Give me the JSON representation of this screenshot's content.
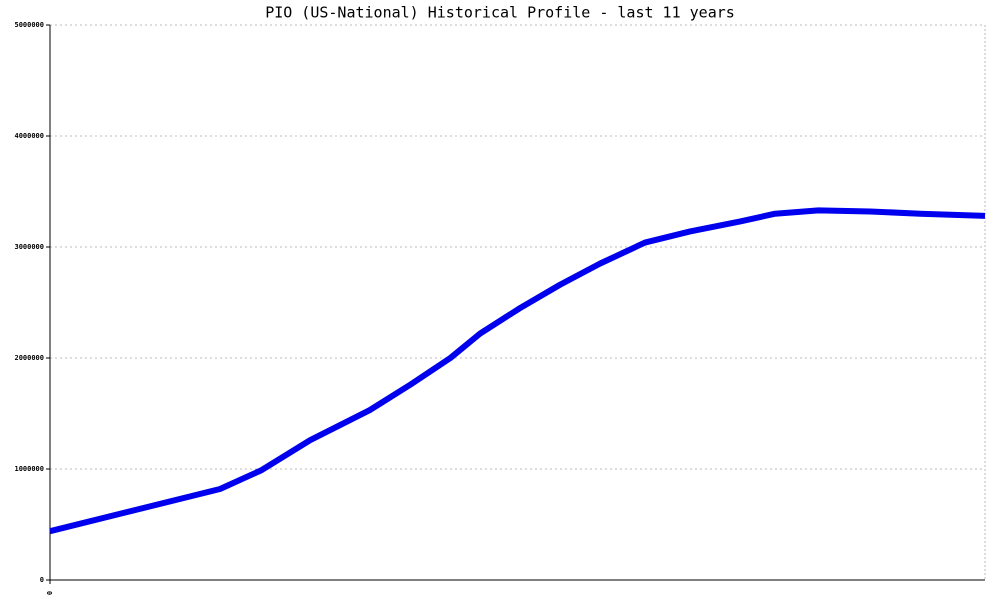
{
  "chart_data": {
    "type": "line",
    "title": "PIO (US-National) Historical Profile - last 11 years",
    "x": [
      0,
      2,
      2.49,
      3.06,
      3.76,
      4.24,
      4.71,
      5.06,
      5.53,
      6,
      6.47,
      7,
      7.53,
      8.12,
      8.53,
      9.04,
      9.65,
      10.24,
      11
    ],
    "values": [
      440000,
      820000,
      990000,
      1260000,
      1530000,
      1760000,
      2000000,
      2220000,
      2450000,
      2660000,
      2850000,
      3040000,
      3140000,
      3230000,
      3300000,
      3330000,
      3320000,
      3300000,
      3280000
    ],
    "color": "#0000ee",
    "xlim": [
      0,
      11
    ],
    "xticks": [
      0
    ],
    "ylim": [
      0,
      5000000
    ],
    "yticks": [
      0,
      1000000,
      2000000,
      3000000,
      4000000,
      5000000
    ],
    "grid": true
  }
}
